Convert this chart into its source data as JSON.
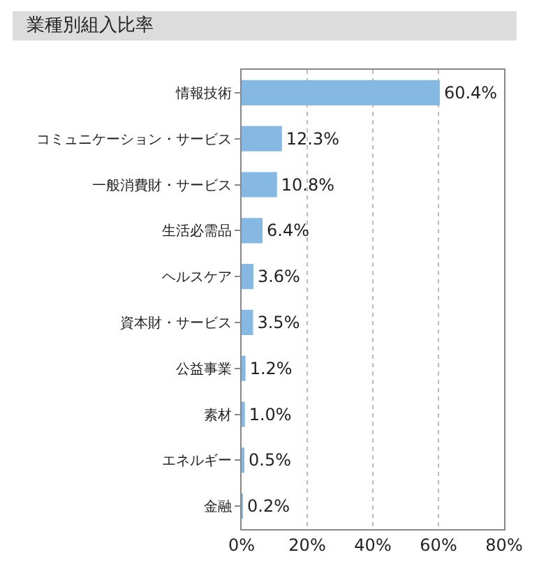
{
  "chart_data": {
    "type": "bar",
    "orientation": "horizontal",
    "title": "業種別組入比率",
    "categories": [
      "情報技術",
      "コミュニケーション・サービス",
      "一般消費財・サービス",
      "生活必需品",
      "ヘルスケア",
      "資本財・サービス",
      "公益事業",
      "素材",
      "エネルギー",
      "金融"
    ],
    "values": [
      60.4,
      12.3,
      10.8,
      6.4,
      3.6,
      3.5,
      1.2,
      1.0,
      0.5,
      0.2
    ],
    "value_labels": [
      "60.4%",
      "12.3%",
      "10.8%",
      "6.4%",
      "3.6%",
      "3.5%",
      "1.2%",
      "1.0%",
      "0.5%",
      "0.2%"
    ],
    "color": "#85b8e3",
    "xlim": [
      0,
      80
    ],
    "xticks": [
      {
        "value": 0,
        "label": "0%"
      },
      {
        "value": 20,
        "label": "20%"
      },
      {
        "value": 40,
        "label": "40%"
      },
      {
        "value": 60,
        "label": "60%"
      },
      {
        "value": 80,
        "label": "80%"
      }
    ],
    "grid": "x"
  }
}
